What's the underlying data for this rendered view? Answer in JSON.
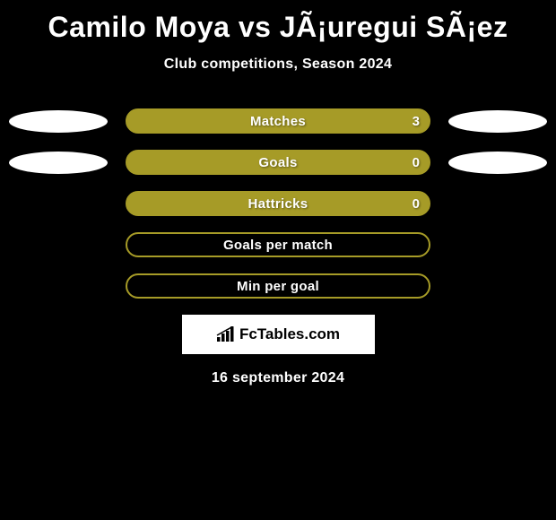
{
  "title": "Camilo Moya vs JÃ¡uregui SÃ¡ez",
  "subtitle": "Club competitions, Season 2024",
  "date": "16 september 2024",
  "logo_text": "FcTables.com",
  "colors": {
    "bar_fill": "#a69b27",
    "bar_border": "#a69b27",
    "blob": "#ffffff",
    "bg": "#000000",
    "text": "#ffffff"
  },
  "rows": [
    {
      "label": "Matches",
      "value": "3",
      "show_value": true,
      "filled": true,
      "left_blob": true,
      "right_blob": true
    },
    {
      "label": "Goals",
      "value": "0",
      "show_value": true,
      "filled": true,
      "left_blob": true,
      "right_blob": true
    },
    {
      "label": "Hattricks",
      "value": "0",
      "show_value": true,
      "filled": true,
      "left_blob": false,
      "right_blob": false
    },
    {
      "label": "Goals per match",
      "value": "",
      "show_value": false,
      "filled": false,
      "left_blob": false,
      "right_blob": false
    },
    {
      "label": "Min per goal",
      "value": "",
      "show_value": false,
      "filled": false,
      "left_blob": false,
      "right_blob": false
    }
  ]
}
